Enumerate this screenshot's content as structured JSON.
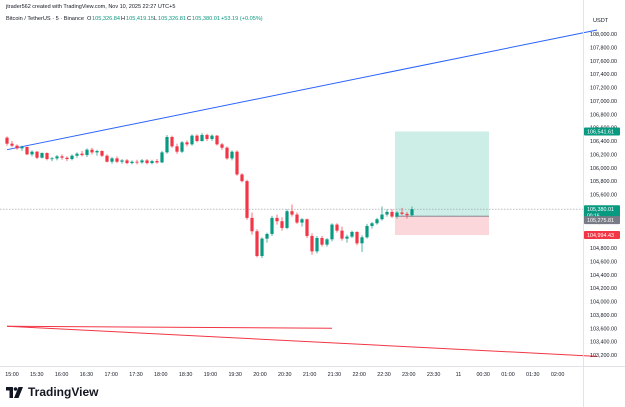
{
  "header": {
    "credit": "jtrader562 created with TradingView.com, Nov 10, 2025 22:27 UTC+5",
    "symbol_line": "Bitcoin / TetherUS · 5 · Binance",
    "ohlc": {
      "open_label": "O",
      "open": "105,326.84",
      "high_label": "H",
      "high": "105,419.15",
      "low_label": "L",
      "low": "105,326.81",
      "close_label": "C",
      "close": "105,380.01",
      "change": "+53.19 (+0.05%)"
    }
  },
  "price_axis": {
    "currency": "USDT",
    "ticks": [
      "108,000.00",
      "107,800.00",
      "107,600.00",
      "107,400.00",
      "107,200.00",
      "107,000.00",
      "106,800.00",
      "106,600.00",
      "106,400.00",
      "106,200.00",
      "106,000.00",
      "105,800.00",
      "105,600.00",
      "105,400.00",
      "105,200.00",
      "105,000.00",
      "104,800.00",
      "104,600.00",
      "104,400.00",
      "104,200.00",
      "104,000.00",
      "103,800.00",
      "103,600.00",
      "103,400.00",
      "103,200.00"
    ],
    "labels": {
      "target": {
        "text": "106,541.61",
        "value": 106541.61,
        "color": "#089981"
      },
      "current": {
        "text": "105,380.01",
        "value": 105380.01,
        "color": "#089981"
      },
      "countdown": {
        "text": "00:16"
      },
      "entry": {
        "text": "105,275.81",
        "value": 105275.81,
        "color": "#787b86"
      },
      "stop": {
        "text": "104,994.43",
        "value": 104994.43,
        "color": "#f23645"
      }
    }
  },
  "time_axis": {
    "ticks": [
      "15:00",
      "15:30",
      "16:00",
      "16:30",
      "17:00",
      "17:30",
      "18:00",
      "18:30",
      "19:00",
      "19:30",
      "20:00",
      "20:30",
      "21:00",
      "21:30",
      "22:00",
      "22:30",
      "23:00",
      "23:30",
      "11",
      "00:30",
      "01:00",
      "01:30",
      "02:00"
    ]
  },
  "watermark": {
    "text": "TradingView"
  },
  "colors": {
    "up": "#089981",
    "down": "#f23645",
    "trend_up": "#2962ff",
    "trend_down": "#f23645",
    "profit_zone": "#cdeee6",
    "loss_zone": "#fbd6da",
    "text": "#131722",
    "axis_text": "#131722"
  },
  "chart_data": {
    "type": "candlestick",
    "interval": "5",
    "ylim": [
      103150,
      108150
    ],
    "candles": [
      [
        106450,
        106470,
        106330,
        106360
      ],
      [
        106360,
        106400,
        106310,
        106330
      ],
      [
        106330,
        106350,
        106270,
        106290
      ],
      [
        106290,
        106330,
        106250,
        106310
      ],
      [
        106310,
        106320,
        106190,
        106200
      ],
      [
        106200,
        106260,
        106170,
        106240
      ],
      [
        106240,
        106250,
        106130,
        106150
      ],
      [
        106150,
        106230,
        106140,
        106220
      ],
      [
        106220,
        106230,
        106110,
        106130
      ],
      [
        106130,
        106160,
        106100,
        106140
      ],
      [
        106140,
        106190,
        106110,
        106170
      ],
      [
        106170,
        106200,
        106120,
        106150
      ],
      [
        106150,
        106170,
        106100,
        106130
      ],
      [
        106130,
        106200,
        106110,
        106180
      ],
      [
        106180,
        106230,
        106150,
        106210
      ],
      [
        106210,
        106250,
        106170,
        106190
      ],
      [
        106190,
        106290,
        106160,
        106270
      ],
      [
        106270,
        106300,
        106200,
        106230
      ],
      [
        106230,
        106270,
        106180,
        106250
      ],
      [
        106250,
        106260,
        106160,
        106180
      ],
      [
        106180,
        106200,
        106080,
        106090
      ],
      [
        106090,
        106160,
        106060,
        106140
      ],
      [
        106140,
        106170,
        106070,
        106090
      ],
      [
        106090,
        106130,
        106060,
        106110
      ],
      [
        106110,
        106130,
        106050,
        106070
      ],
      [
        106070,
        106110,
        106050,
        106090
      ],
      [
        106090,
        106120,
        106050,
        106080
      ],
      [
        106080,
        106130,
        106060,
        106110
      ],
      [
        106110,
        106130,
        106050,
        106070
      ],
      [
        106070,
        106120,
        106050,
        106100
      ],
      [
        106100,
        106130,
        106060,
        106080
      ],
      [
        106080,
        106250,
        106070,
        106230
      ],
      [
        106230,
        106490,
        106210,
        106460
      ],
      [
        106460,
        106480,
        106300,
        106320
      ],
      [
        106320,
        106360,
        106210,
        106240
      ],
      [
        106240,
        106400,
        106220,
        106380
      ],
      [
        106380,
        106410,
        106320,
        106350
      ],
      [
        106350,
        106500,
        106330,
        106480
      ],
      [
        106480,
        106500,
        106380,
        106400
      ],
      [
        106400,
        106520,
        106390,
        106490
      ],
      [
        106490,
        106510,
        106400,
        106430
      ],
      [
        106430,
        106500,
        106400,
        106480
      ],
      [
        106480,
        106490,
        106330,
        106350
      ],
      [
        106350,
        106370,
        106270,
        106300
      ],
      [
        106300,
        106320,
        106120,
        106140
      ],
      [
        106140,
        106260,
        106110,
        106240
      ],
      [
        106240,
        106260,
        105880,
        105900
      ],
      [
        105900,
        105920,
        105780,
        105800
      ],
      [
        105800,
        105820,
        105220,
        105250
      ],
      [
        105250,
        105330,
        105000,
        105050
      ],
      [
        105050,
        105080,
        104660,
        104680
      ],
      [
        104680,
        104960,
        104650,
        104940
      ],
      [
        104940,
        105030,
        104880,
        105010
      ],
      [
        105010,
        105280,
        104980,
        105250
      ],
      [
        105250,
        105300,
        105150,
        105200
      ],
      [
        105200,
        105260,
        105060,
        105100
      ],
      [
        105100,
        105380,
        105080,
        105350
      ],
      [
        105350,
        105450,
        105270,
        105300
      ],
      [
        105300,
        105330,
        105160,
        105180
      ],
      [
        105180,
        105250,
        105120,
        105230
      ],
      [
        105230,
        105240,
        104950,
        104980
      ],
      [
        104980,
        105020,
        104700,
        104750
      ],
      [
        104750,
        104980,
        104720,
        104950
      ],
      [
        104950,
        104980,
        104820,
        104850
      ],
      [
        104850,
        104950,
        104820,
        104930
      ],
      [
        104930,
        105170,
        104900,
        105150
      ],
      [
        105150,
        105170,
        105030,
        105060
      ],
      [
        105060,
        105120,
        104910,
        104940
      ],
      [
        104940,
        105000,
        104880,
        104970
      ],
      [
        104970,
        105060,
        104950,
        105040
      ],
      [
        105040,
        105050,
        104840,
        104870
      ],
      [
        104870,
        104990,
        104740,
        104960
      ],
      [
        104960,
        105160,
        104940,
        105130
      ],
      [
        105130,
        105190,
        105090,
        105170
      ],
      [
        105170,
        105250,
        105150,
        105230
      ],
      [
        105230,
        105420,
        105210,
        105300
      ],
      [
        105300,
        105380,
        105270,
        105340
      ],
      [
        105340,
        105380,
        105250,
        105270
      ],
      [
        105270,
        105350,
        105240,
        105330
      ],
      [
        105330,
        105400,
        105290,
        105310
      ],
      [
        105310,
        105340,
        105240,
        105290
      ],
      [
        105290,
        105420,
        105270,
        105380
      ]
    ],
    "trendlines": [
      {
        "from": [
          0,
          106270
        ],
        "to": [
          118,
          108060
        ],
        "color": "#2962ff"
      },
      {
        "from": [
          0,
          103630
        ],
        "to": [
          65,
          103600
        ],
        "color": "#f23645"
      },
      {
        "from": [
          0,
          103630
        ],
        "to": [
          118,
          103180
        ],
        "color": "#f23645"
      }
    ],
    "position": {
      "entry": 105275.81,
      "target": 106541.61,
      "stop": 104994.43,
      "start_index": 78,
      "end_index": 96
    },
    "current_price": 105380.01
  }
}
